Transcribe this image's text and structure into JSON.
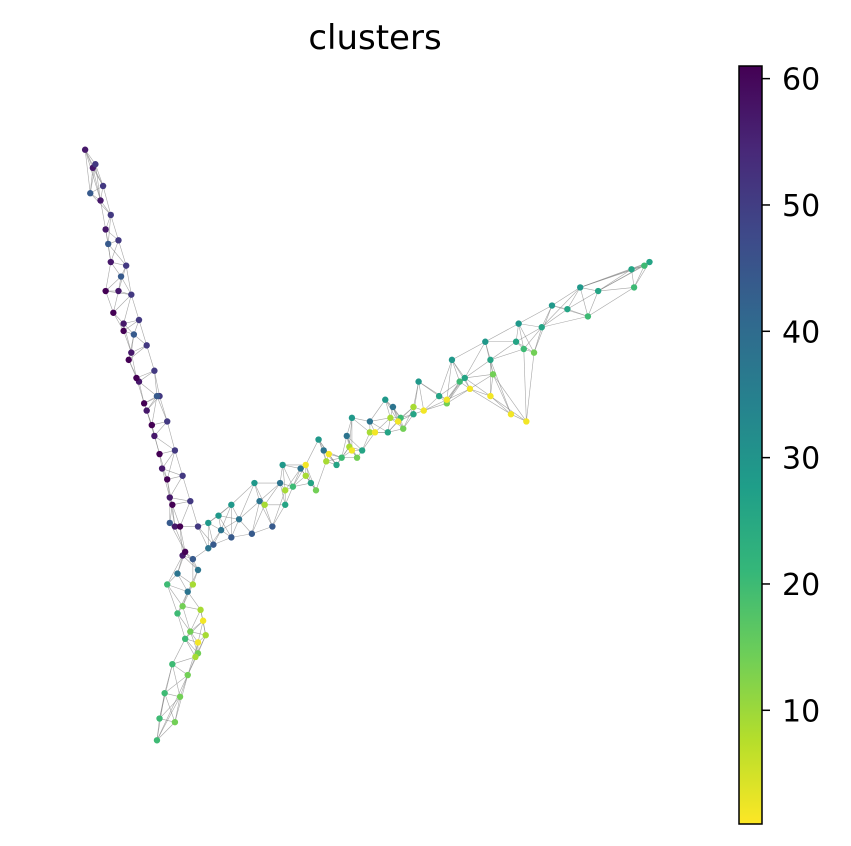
{
  "chart_data": {
    "type": "scatter",
    "title": "clusters",
    "xlabel": "",
    "ylabel": "",
    "axes_visible": false,
    "grid": false,
    "edges_color": "#808080",
    "colormap": "viridis_r",
    "colorbar": {
      "label": "",
      "range": [
        1,
        61
      ],
      "ticks": [
        {
          "value": 10,
          "label": "10"
        },
        {
          "value": 20,
          "label": "20"
        },
        {
          "value": 30,
          "label": "30"
        },
        {
          "value": 40,
          "label": "40"
        },
        {
          "value": 50,
          "label": "50"
        },
        {
          "value": 60,
          "label": "60"
        }
      ],
      "colors": [
        "#fde725",
        "#b5de2b",
        "#6ece58",
        "#35b779",
        "#1f9e89",
        "#26828e",
        "#31688e",
        "#3e4989",
        "#482878",
        "#440154"
      ]
    },
    "groups": [
      {
        "cluster": 57,
        "points": [
          [
            -8.8,
            9.4
          ],
          [
            -8.5,
            8.9
          ],
          [
            -8.2,
            8.0
          ],
          [
            -8.0,
            7.2
          ],
          [
            -7.8,
            6.3
          ],
          [
            -7.5,
            5.5
          ],
          [
            -7.3,
            4.6
          ],
          [
            -7.0,
            3.8
          ],
          [
            -6.7,
            3.0
          ],
          [
            -6.4,
            2.2
          ],
          [
            -6.1,
            1.5
          ],
          [
            -5.8,
            0.6
          ],
          [
            -5.5,
            -0.2
          ],
          [
            -5.3,
            -1.0
          ],
          [
            -5.0,
            -1.8
          ]
        ]
      },
      {
        "cluster": 51,
        "points": [
          [
            -8.4,
            9.0
          ],
          [
            -8.1,
            8.4
          ],
          [
            -7.8,
            7.6
          ],
          [
            -7.5,
            6.9
          ],
          [
            -7.2,
            6.2
          ],
          [
            -7.0,
            5.4
          ],
          [
            -6.7,
            4.7
          ],
          [
            -6.4,
            4.0
          ],
          [
            -6.1,
            3.3
          ],
          [
            -5.9,
            2.6
          ],
          [
            -5.6,
            1.9
          ],
          [
            -5.3,
            1.1
          ],
          [
            -5.0,
            0.4
          ],
          [
            -4.7,
            -0.3
          ],
          [
            -4.4,
            -1.0
          ]
        ]
      },
      {
        "cluster": 61,
        "points": [
          [
            -8.0,
            5.5
          ],
          [
            -7.7,
            4.9
          ],
          [
            -7.3,
            4.4
          ],
          [
            -7.1,
            3.6
          ],
          [
            -6.8,
            3.1
          ],
          [
            -6.5,
            2.4
          ],
          [
            -6.2,
            1.8
          ],
          [
            -5.9,
            1.0
          ],
          [
            -5.6,
            0.3
          ],
          [
            -5.4,
            -0.4
          ],
          [
            -5.1,
            -1.0
          ],
          [
            -4.9,
            -1.7
          ]
        ]
      },
      {
        "cluster": 44,
        "points": [
          [
            -8.6,
            8.2
          ],
          [
            -7.9,
            6.8
          ],
          [
            -7.4,
            5.9
          ],
          [
            -6.9,
            4.3
          ],
          [
            -6.0,
            2.6
          ],
          [
            -5.5,
            -0.9
          ],
          [
            -4.6,
            -1.9
          ],
          [
            -3.8,
            -1.5
          ],
          [
            -3.1,
            -1.3
          ],
          [
            -2.3,
            -1.2
          ],
          [
            -1.5,
            -1.0
          ]
        ]
      },
      {
        "cluster": 38,
        "points": [
          [
            -5.2,
            -2.3
          ],
          [
            -4.8,
            -2.8
          ],
          [
            -4.4,
            -2.2
          ],
          [
            -4.0,
            -1.6
          ],
          [
            -3.5,
            -1.1
          ],
          [
            -2.8,
            -0.8
          ],
          [
            -2.0,
            -0.3
          ],
          [
            -1.2,
            0.2
          ],
          [
            -0.4,
            0.6
          ],
          [
            0.5,
            1.1
          ],
          [
            1.4,
            1.5
          ],
          [
            2.3,
            1.9
          ],
          [
            3.2,
            2.3
          ]
        ]
      },
      {
        "cluster": 29,
        "points": [
          [
            -4.0,
            -0.9
          ],
          [
            -3.6,
            -0.7
          ],
          [
            -3.1,
            -0.4
          ],
          [
            -2.2,
            0.2
          ],
          [
            -1.1,
            0.7
          ],
          [
            0.3,
            1.4
          ],
          [
            1.6,
            2.0
          ],
          [
            2.9,
            2.5
          ],
          [
            4.2,
            3.0
          ],
          [
            5.5,
            3.6
          ],
          [
            6.8,
            4.1
          ],
          [
            8.1,
            4.6
          ],
          [
            9.4,
            5.1
          ],
          [
            10.5,
            5.6
          ]
        ]
      },
      {
        "cluster": 26,
        "points": [
          [
            -1.0,
            -0.4
          ],
          [
            0.0,
            0.2
          ],
          [
            1.0,
            0.7
          ],
          [
            2.0,
            1.1
          ],
          [
            3.0,
            1.6
          ],
          [
            4.0,
            2.1
          ],
          [
            5.0,
            2.6
          ],
          [
            6.0,
            3.1
          ],
          [
            7.0,
            3.6
          ],
          [
            8.0,
            4.1
          ],
          [
            9.0,
            4.5
          ],
          [
            10.0,
            5.0
          ],
          [
            11.2,
            5.5
          ],
          [
            12.5,
            6.1
          ],
          [
            13.2,
            6.3
          ]
        ]
      },
      {
        "cluster": 20,
        "points": [
          [
            -5.6,
            -2.6
          ],
          [
            -5.2,
            -3.4
          ],
          [
            -4.9,
            -4.1
          ],
          [
            -5.4,
            -4.8
          ],
          [
            -5.7,
            -5.6
          ],
          [
            -5.9,
            -6.3
          ],
          [
            -6.0,
            -6.9
          ],
          [
            -0.7,
            0.1
          ],
          [
            1.2,
            0.9
          ],
          [
            3.5,
            2.0
          ],
          [
            5.8,
            3.0
          ],
          [
            8.3,
            3.9
          ],
          [
            10.8,
            4.8
          ],
          [
            12.6,
            5.6
          ],
          [
            13.0,
            6.2
          ]
        ]
      },
      {
        "cluster": 14,
        "points": [
          [
            -5.0,
            -3.2
          ],
          [
            -4.7,
            -3.9
          ],
          [
            -4.4,
            -4.5
          ],
          [
            -4.8,
            -5.1
          ],
          [
            -5.1,
            -5.7
          ],
          [
            -5.3,
            -6.4
          ],
          [
            0.2,
            0.0
          ],
          [
            1.8,
            0.9
          ],
          [
            3.6,
            1.7
          ],
          [
            5.3,
            2.4
          ],
          [
            7.1,
            3.2
          ],
          [
            8.7,
            3.8
          ]
        ]
      },
      {
        "cluster": 9,
        "points": [
          [
            -4.6,
            -2.6
          ],
          [
            -4.3,
            -3.3
          ],
          [
            -4.1,
            -4.0
          ],
          [
            -4.5,
            -4.6
          ],
          [
            -1.8,
            -0.4
          ],
          [
            -1.0,
            0.0
          ],
          [
            -0.2,
            0.4
          ],
          [
            0.6,
            0.8
          ],
          [
            1.5,
            1.2
          ],
          [
            2.3,
            1.6
          ],
          [
            3.1,
            2.0
          ],
          [
            4.0,
            2.3
          ]
        ]
      },
      {
        "cluster": 2,
        "points": [
          [
            -4.2,
            -3.6
          ],
          [
            -4.4,
            -4.2
          ],
          [
            -0.2,
            0.7
          ],
          [
            0.7,
            1.0
          ],
          [
            1.6,
            1.1
          ],
          [
            2.5,
            1.6
          ],
          [
            3.4,
            1.9
          ],
          [
            4.4,
            2.2
          ],
          [
            5.3,
            2.5
          ],
          [
            6.2,
            2.8
          ],
          [
            7.0,
            2.6
          ],
          [
            7.8,
            2.1
          ],
          [
            8.4,
            1.9
          ]
        ]
      }
    ]
  }
}
